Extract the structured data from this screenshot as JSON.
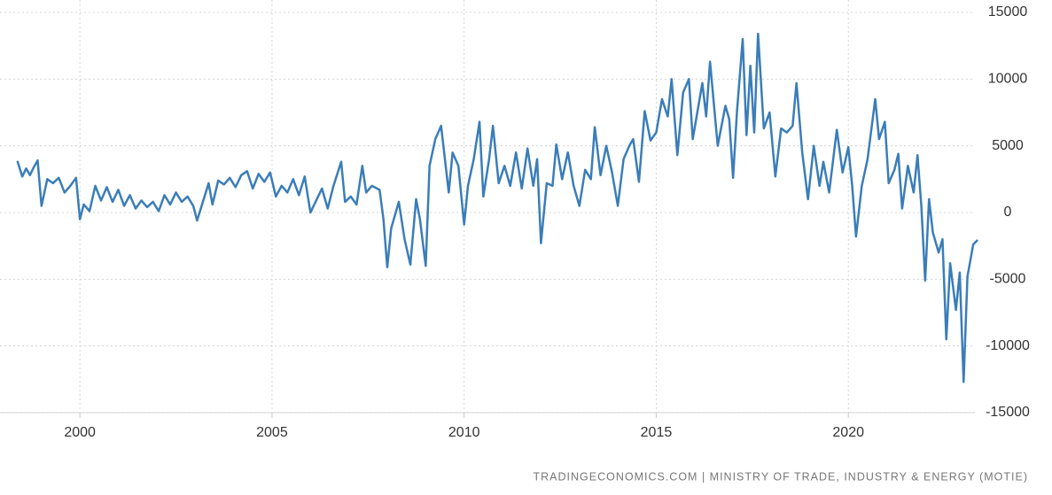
{
  "chart_data": {
    "type": "line",
    "source": "TRADINGECONOMICS.COM | MINISTRY OF TRADE, INDUSTRY & ENERGY (MOTIE)",
    "color": "#3a7db9",
    "grid": true,
    "xlim": [
      1997.92,
      2023.4
    ],
    "xticks": [
      2000,
      2005,
      2010,
      2015,
      2020
    ],
    "ylim": [
      -15000,
      15000
    ],
    "yticks": [
      -15000,
      -10000,
      -5000,
      0,
      5000,
      10000,
      15000
    ],
    "x": [
      1998.38,
      1998.5,
      1998.6,
      1998.7,
      1998.8,
      1998.9,
      1999.0,
      1999.15,
      1999.3,
      1999.45,
      1999.6,
      1999.75,
      1999.9,
      2000.0,
      2000.1,
      2000.25,
      2000.4,
      2000.55,
      2000.7,
      2000.85,
      2001.0,
      2001.15,
      2001.3,
      2001.45,
      2001.6,
      2001.75,
      2001.9,
      2002.05,
      2002.2,
      2002.35,
      2002.5,
      2002.65,
      2002.8,
      2002.95,
      2003.05,
      2003.2,
      2003.35,
      2003.45,
      2003.6,
      2003.75,
      2003.9,
      2004.05,
      2004.2,
      2004.35,
      2004.5,
      2004.65,
      2004.8,
      2004.95,
      2005.1,
      2005.25,
      2005.4,
      2005.55,
      2005.7,
      2005.85,
      2006.0,
      2006.15,
      2006.3,
      2006.45,
      2006.6,
      2006.8,
      2006.9,
      2007.05,
      2007.2,
      2007.35,
      2007.45,
      2007.6,
      2007.8,
      2007.9,
      2008.0,
      2008.1,
      2008.3,
      2008.45,
      2008.6,
      2008.75,
      2008.85,
      2009.0,
      2009.1,
      2009.25,
      2009.4,
      2009.6,
      2009.7,
      2009.85,
      2010.0,
      2010.1,
      2010.25,
      2010.4,
      2010.5,
      2010.65,
      2010.75,
      2010.9,
      2011.05,
      2011.2,
      2011.35,
      2011.5,
      2011.65,
      2011.8,
      2011.9,
      2012.0,
      2012.15,
      2012.3,
      2012.4,
      2012.55,
      2012.7,
      2012.85,
      2013.0,
      2013.15,
      2013.3,
      2013.4,
      2013.55,
      2013.7,
      2013.85,
      2014.0,
      2014.15,
      2014.3,
      2014.4,
      2014.55,
      2014.7,
      2014.85,
      2015.0,
      2015.15,
      2015.3,
      2015.4,
      2015.55,
      2015.7,
      2015.85,
      2015.95,
      2016.2,
      2016.3,
      2016.4,
      2016.6,
      2016.8,
      2016.9,
      2017.0,
      2017.1,
      2017.25,
      2017.35,
      2017.45,
      2017.55,
      2017.65,
      2017.8,
      2017.95,
      2018.1,
      2018.25,
      2018.4,
      2018.55,
      2018.65,
      2018.8,
      2018.95,
      2019.1,
      2019.25,
      2019.35,
      2019.5,
      2019.7,
      2019.85,
      2020.0,
      2020.1,
      2020.2,
      2020.35,
      2020.5,
      2020.7,
      2020.8,
      2020.95,
      2021.05,
      2021.2,
      2021.3,
      2021.4,
      2021.55,
      2021.7,
      2021.8,
      2021.9,
      2022.0,
      2022.1,
      2022.2,
      2022.35,
      2022.45,
      2022.55,
      2022.65,
      2022.8,
      2022.9,
      2023.0,
      2023.1,
      2023.25,
      2023.35
    ],
    "values": [
      3800,
      2700,
      3300,
      2800,
      3400,
      3900,
      500,
      2500,
      2200,
      2600,
      1500,
      2000,
      2600,
      -500,
      600,
      100,
      2000,
      900,
      1900,
      800,
      1700,
      500,
      1300,
      300,
      900,
      400,
      800,
      100,
      1300,
      600,
      1500,
      800,
      1200,
      500,
      -600,
      800,
      2200,
      600,
      2400,
      2100,
      2600,
      1900,
      2800,
      3100,
      1800,
      2900,
      2300,
      3000,
      1200,
      2000,
      1500,
      2500,
      1300,
      2700,
      0,
      900,
      1800,
      300,
      2000,
      3800,
      800,
      1200,
      600,
      3500,
      1500,
      2000,
      1700,
      -500,
      -4100,
      -1200,
      800,
      -2000,
      -3900,
      1000,
      -500,
      -4000,
      3500,
      5500,
      6500,
      1500,
      4500,
      3500,
      -900,
      2000,
      4000,
      6800,
      1200,
      4000,
      6500,
      2200,
      3500,
      2000,
      4500,
      1800,
      4800,
      2000,
      4000,
      -2300,
      2200,
      2000,
      5100,
      2500,
      4500,
      2000,
      500,
      3200,
      2500,
      6400,
      2800,
      5000,
      3000,
      500,
      4000,
      5000,
      5500,
      2300,
      7600,
      5400,
      6000,
      8500,
      7200,
      10000,
      4300,
      9000,
      10000,
      5500,
      9700,
      7200,
      11300,
      5000,
      8000,
      7000,
      2600,
      7500,
      13000,
      5800,
      11000,
      6000,
      13400,
      6300,
      7500,
      2700,
      6300,
      6000,
      6500,
      9700,
      4500,
      1000,
      5000,
      2000,
      3800,
      1500,
      6200,
      3000,
      4900,
      2000,
      -1800,
      2000,
      4000,
      8500,
      5500,
      6800,
      2200,
      3200,
      4400,
      300,
      3500,
      1500,
      4300,
      500,
      -5100,
      1000,
      -1500,
      -3000,
      -2000,
      -9500,
      -3800,
      -7300,
      -4500,
      -12700,
      -4800,
      -2400,
      -2100
    ]
  }
}
